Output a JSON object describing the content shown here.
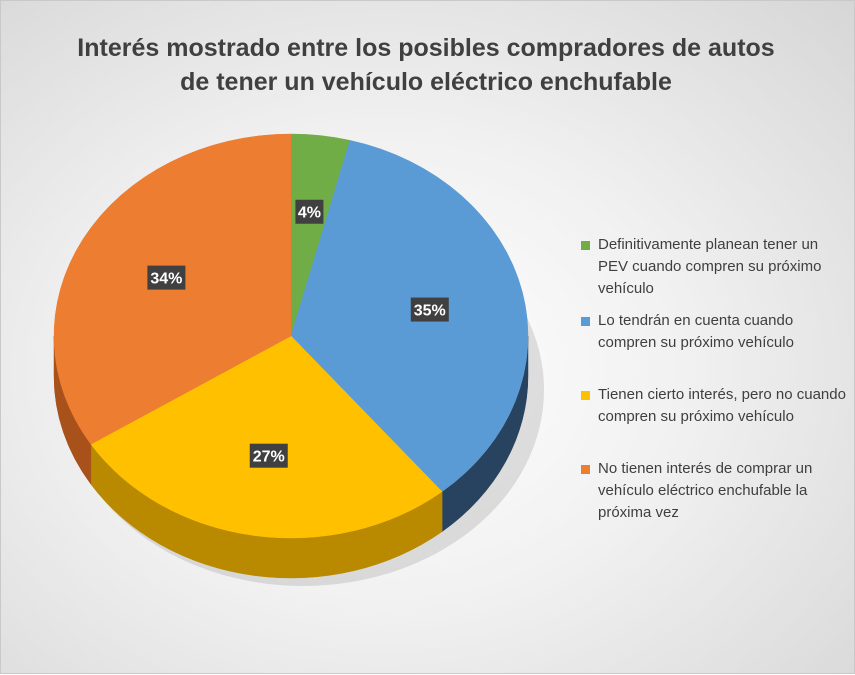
{
  "chart_data": {
    "type": "pie",
    "title_lines": [
      "Interés mostrado entre los posibles compradores de autos",
      "de tener un vehículo eléctrico enchufable"
    ],
    "slices": [
      {
        "label": "Definitivamente planean tener un PEV cuando compren su próximo vehículo",
        "value": 4,
        "value_label": "4%",
        "color": "#70ad47",
        "side_color": "#4e7a31"
      },
      {
        "label": "Lo tendrán en cuenta cuando compren su próximo vehículo",
        "value": 35,
        "value_label": "35%",
        "color": "#5b9bd5",
        "side_color": "#27435f"
      },
      {
        "label": "Tienen cierto interés, pero no cuando compren su próximo vehículo",
        "value": 27,
        "value_label": "27%",
        "color": "#ffc000",
        "side_color": "#b98a00"
      },
      {
        "label": "No tienen interés de comprar un vehículo eléctrico enchufable la próxima vez",
        "value": 34,
        "value_label": "34%",
        "color": "#ed7d31",
        "side_color": "#a9511b"
      }
    ],
    "legend_position": "right",
    "style": "3d-pie"
  }
}
